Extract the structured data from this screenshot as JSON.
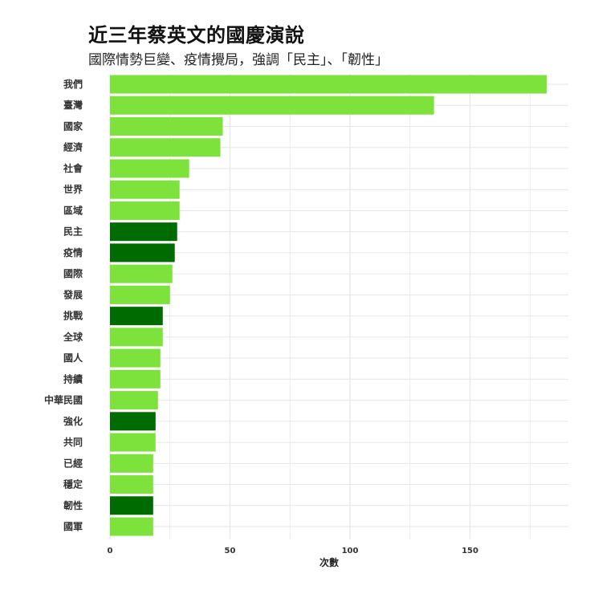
{
  "title": "近三年蔡英文的國慶演說",
  "subtitle": "國際情勢巨變、疫情攪局，強調「民主」、「韌性」",
  "colors": {
    "default_bar": "#7ee23c",
    "highlight_bar": "#006b00",
    "grid": "#e6e6e6"
  },
  "chart_data": {
    "type": "bar",
    "orientation": "horizontal",
    "title": "近三年蔡英文的國慶演說",
    "subtitle": "國際情勢巨變、疫情攪局，強調「民主」、「韌性」",
    "xlabel": "次數",
    "ylabel": "",
    "xlim": [
      0,
      190
    ],
    "xticks": [
      0,
      50,
      100,
      150
    ],
    "grid": true,
    "categories": [
      "我們",
      "臺灣",
      "國家",
      "經濟",
      "社會",
      "世界",
      "區域",
      "民主",
      "疫情",
      "國際",
      "發展",
      "挑戰",
      "全球",
      "國人",
      "持續",
      "中華民國",
      "強化",
      "共同",
      "已經",
      "穩定",
      "韌性",
      "國軍"
    ],
    "values": [
      182,
      135,
      47,
      46,
      33,
      29,
      29,
      28,
      27,
      26,
      25,
      22,
      22,
      21,
      21,
      20,
      19,
      19,
      18,
      18,
      18,
      18
    ],
    "highlighted": [
      "民主",
      "疫情",
      "挑戰",
      "強化",
      "韌性"
    ]
  }
}
